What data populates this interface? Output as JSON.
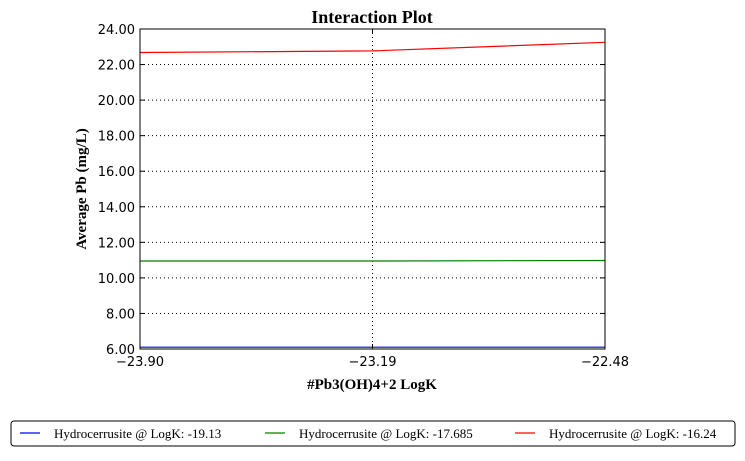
{
  "chart_data": {
    "type": "line",
    "title": "Interaction Plot",
    "xlabel": "#Pb3(OH)4+2 LogK",
    "ylabel": "Average Pb (mg/L)",
    "x": [
      -23.9,
      -23.19,
      -22.48
    ],
    "x_tick_labels": [
      "−23.90",
      "−23.19",
      "−22.48"
    ],
    "xlim": [
      -23.9,
      -22.48
    ],
    "ylim": [
      6.0,
      24.0
    ],
    "y_ticks": [
      6.0,
      8.0,
      10.0,
      12.0,
      14.0,
      16.0,
      18.0,
      20.0,
      22.0,
      24.0
    ],
    "y_tick_labels": [
      "6.00",
      "8.00",
      "10.00",
      "12.00",
      "14.00",
      "16.00",
      "18.00",
      "20.00",
      "22.00",
      "24.00"
    ],
    "grid": true,
    "legend_position": "bottom",
    "series": [
      {
        "name": "Hydrocerrusite @ LogK: -19.13",
        "color": "#0000ff",
        "values": [
          6.1,
          6.1,
          6.1
        ]
      },
      {
        "name": "Hydrocerrusite @ LogK: -17.685",
        "color": "#008000",
        "values": [
          10.95,
          10.95,
          10.98
        ]
      },
      {
        "name": "Hydrocerrusite @ LogK: -16.24",
        "color": "#ff0000",
        "values": [
          22.68,
          22.77,
          23.25
        ]
      }
    ]
  }
}
